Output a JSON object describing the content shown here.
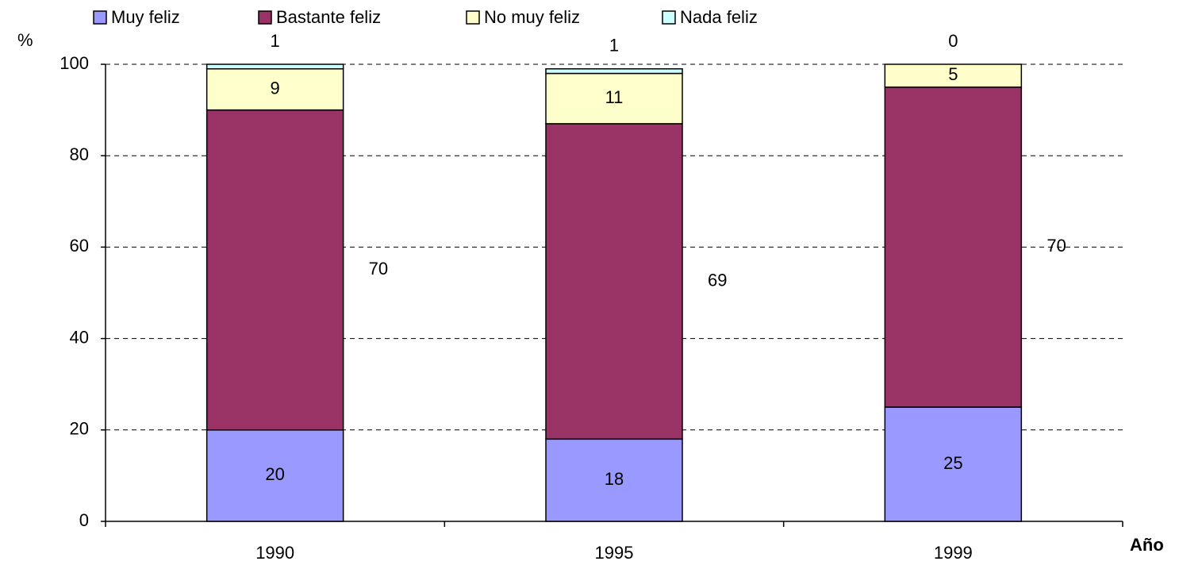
{
  "chart_data": {
    "type": "stacked_bar",
    "y_label": "%",
    "x_label": "Año",
    "categories": [
      "1990",
      "1995",
      "1999"
    ],
    "series": [
      {
        "name": "Muy feliz",
        "color": "#9999ff",
        "values": [
          20,
          18,
          25
        ]
      },
      {
        "name": "Bastante feliz",
        "color": "#993366",
        "values": [
          70,
          69,
          70
        ]
      },
      {
        "name": "No muy feliz",
        "color": "#ffffcc",
        "values": [
          9,
          11,
          5
        ]
      },
      {
        "name": "Nada feliz",
        "color": "#ccffff",
        "values": [
          1,
          1,
          0
        ]
      }
    ],
    "ylim": [
      0,
      100
    ],
    "yticks": [
      0,
      20,
      40,
      60,
      80,
      100
    ],
    "grid": true,
    "legend": "top"
  }
}
